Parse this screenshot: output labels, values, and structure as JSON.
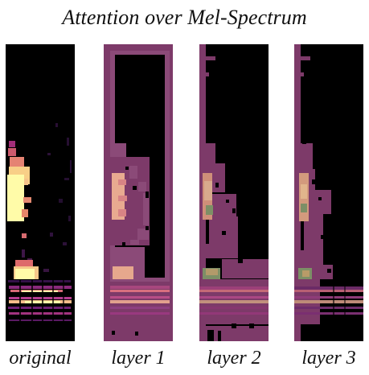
{
  "figure": {
    "title": "Attention over Mel-Spectrum",
    "panels": [
      {
        "label": "original",
        "kind": "spectrogram"
      },
      {
        "label": "layer 1",
        "kind": "attention"
      },
      {
        "label": "layer 2",
        "kind": "attention"
      },
      {
        "label": "layer 3",
        "kind": "attention"
      }
    ]
  },
  "colors": {
    "background": "#000000",
    "attention_overlay": "#7d3a69",
    "attention_border": "#8b4a78",
    "hot_yellow": "#fffba8",
    "hot_orange": "#f5c48a",
    "magenta": "#b33d8f",
    "green_patch": "#7d8f66"
  }
}
